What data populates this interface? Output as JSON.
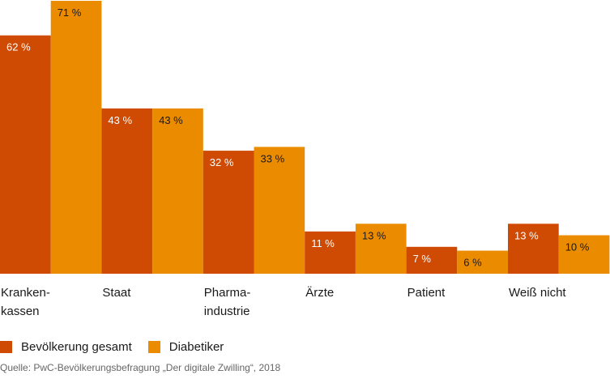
{
  "chart_data": {
    "type": "bar",
    "categories": [
      "Kranken-\nkassen",
      "Staat",
      "Pharma-\nindustrie",
      "Ärzte",
      "Patient",
      "Weiß nicht"
    ],
    "series": [
      {
        "name": "Bevölkerung gesamt",
        "color": "#cf4a02",
        "values": [
          62,
          43,
          32,
          11,
          7,
          13
        ],
        "labels": [
          "62 %",
          "43 %",
          "32 %",
          "11 %",
          "7 %",
          "13 %"
        ]
      },
      {
        "name": "Diabetiker",
        "color": "#eb8c00",
        "values": [
          71,
          43,
          33,
          13,
          6,
          10
        ],
        "labels": [
          "71 %",
          "43 %",
          "33 %",
          "13 %",
          "6 %",
          "10 %"
        ]
      }
    ],
    "ylim": [
      0,
      71
    ],
    "grid": false,
    "legend": "bottom-left"
  },
  "source": "Quelle: PwC-Bevölkerungsbefragung „Der digitale Zwilling“, 2018"
}
